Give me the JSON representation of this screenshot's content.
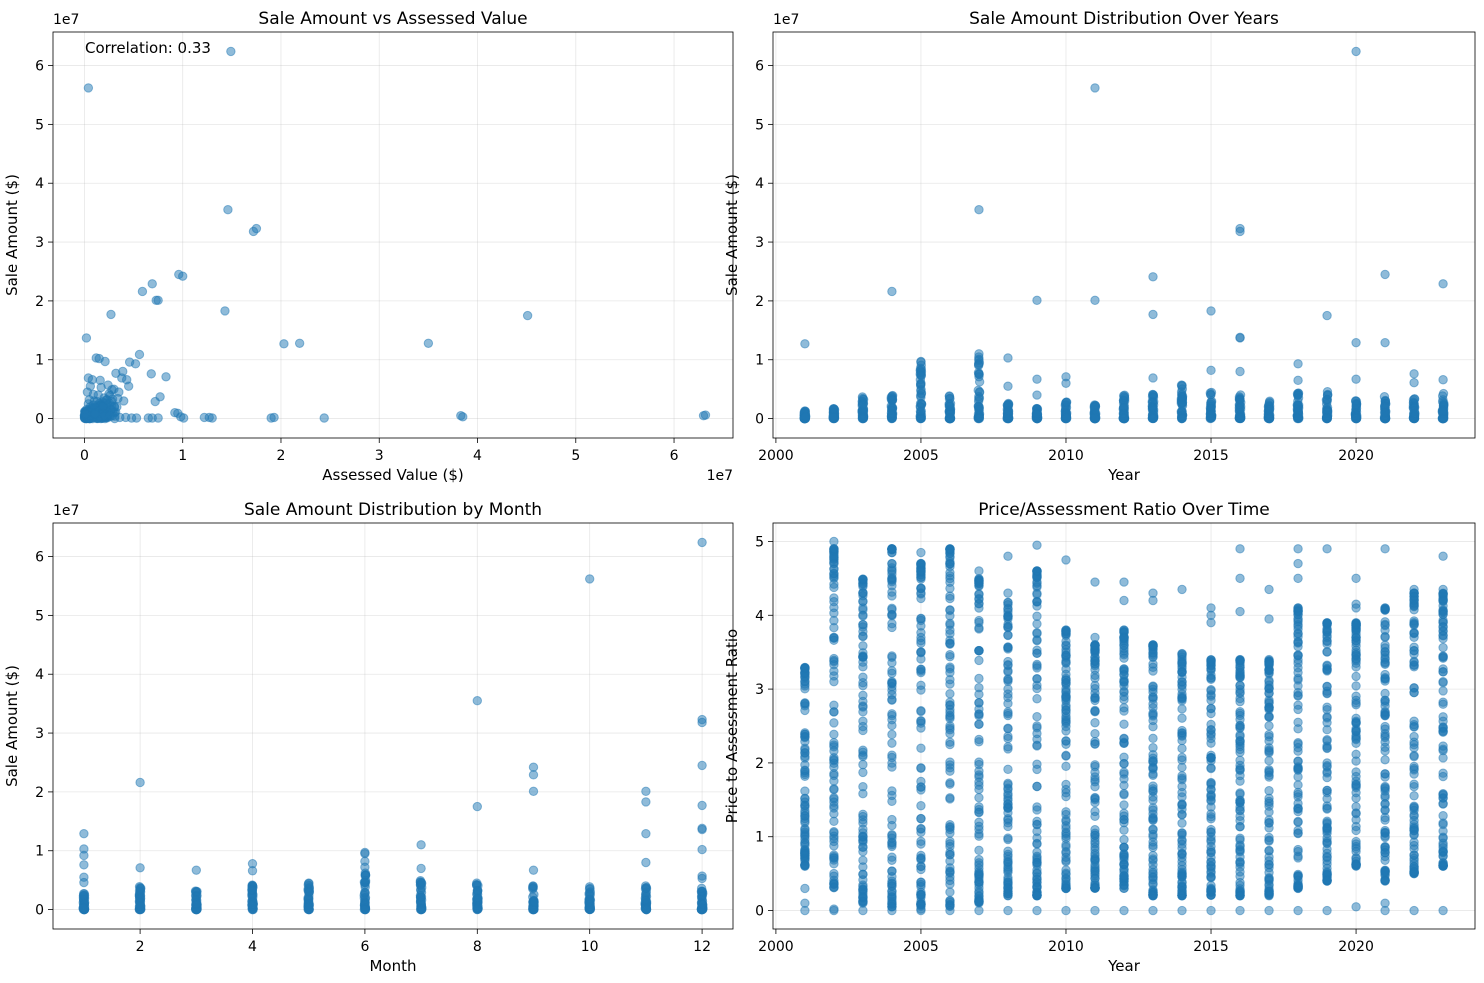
{
  "chart_data": [
    {
      "type": "scatter",
      "title": "Sale Amount vs Assessed Value",
      "xlabel": "Assessed Value ($)",
      "ylabel": "Sale Amount ($)",
      "x_scale_label": "1e7",
      "y_scale_label": "1e7",
      "annotation": "Correlation: 0.33",
      "xlim": [
        -3.2,
        66
      ],
      "ylim": [
        -3.3,
        65.7
      ],
      "xticks": [
        0,
        10,
        20,
        30,
        40,
        50,
        60
      ],
      "xtick_labels": [
        "0",
        "1",
        "2",
        "3",
        "4",
        "5",
        "6"
      ],
      "yticks": [
        0,
        10,
        20,
        30,
        40,
        50,
        60
      ],
      "ytick_labels": [
        "0",
        "1",
        "2",
        "3",
        "4",
        "5",
        "6"
      ],
      "grid": true,
      "units": "millions of dollars (axis shown in units of 1e7)",
      "points": [
        [
          0.2,
          13.7
        ],
        [
          0.4,
          56.2
        ],
        [
          14.9,
          62.4
        ],
        [
          14.6,
          35.5
        ],
        [
          17.2,
          31.8
        ],
        [
          17.5,
          32.3
        ],
        [
          9.6,
          24.5
        ],
        [
          10.0,
          24.2
        ],
        [
          6.9,
          22.9
        ],
        [
          5.9,
          21.6
        ],
        [
          7.3,
          20.1
        ],
        [
          7.5,
          20.1
        ],
        [
          2.7,
          17.7
        ],
        [
          14.3,
          18.3
        ],
        [
          45.1,
          17.5
        ],
        [
          35,
          12.8
        ],
        [
          20.3,
          12.7
        ],
        [
          21.9,
          12.8
        ],
        [
          1.2,
          10.3
        ],
        [
          1.5,
          10.2
        ],
        [
          5.6,
          10.9
        ],
        [
          4.6,
          9.6
        ],
        [
          5.2,
          9.3
        ],
        [
          2.1,
          9.7
        ],
        [
          6.8,
          7.6
        ],
        [
          8.3,
          7.1
        ],
        [
          0.4,
          6.9
        ],
        [
          0.8,
          6.6
        ],
        [
          1.6,
          6.5
        ],
        [
          3.8,
          6.9
        ],
        [
          3.2,
          7.7
        ],
        [
          4.3,
          6.6
        ],
        [
          7.7,
          3.7
        ],
        [
          7.2,
          2.9
        ],
        [
          4.5,
          5.5
        ],
        [
          0.3,
          1
        ],
        [
          0.6,
          2
        ],
        [
          1,
          3
        ],
        [
          1.4,
          4
        ],
        [
          2,
          3.5
        ],
        [
          2.5,
          4.2
        ],
        [
          3,
          5
        ],
        [
          3.5,
          4.5
        ],
        [
          4,
          3
        ],
        [
          1.5,
          1.2
        ],
        [
          2.2,
          2.6
        ],
        [
          0.8,
          0.5
        ],
        [
          1.1,
          1.8
        ],
        [
          1.8,
          0.9
        ],
        [
          2.7,
          1.5
        ],
        [
          3.3,
          2
        ],
        [
          0.5,
          3.2
        ],
        [
          0.2,
          0.3
        ],
        [
          0.4,
          0.6
        ],
        [
          1.3,
          2.9
        ],
        [
          2.4,
          5.7
        ],
        [
          2.8,
          4.9
        ],
        [
          3.9,
          8
        ],
        [
          0.9,
          4.1
        ],
        [
          0.6,
          5.5
        ],
        [
          1.7,
          5.3
        ],
        [
          2.9,
          1.1
        ],
        [
          3.1,
          0.4
        ],
        [
          3.6,
          0.2
        ],
        [
          4.2,
          0.2
        ],
        [
          4.8,
          0.1
        ],
        [
          5.3,
          0.1
        ],
        [
          6.5,
          0.1
        ],
        [
          6.9,
          0.1
        ],
        [
          7.5,
          0.1
        ],
        [
          9.2,
          1
        ],
        [
          9.5,
          0.9
        ],
        [
          9.8,
          0.3
        ],
        [
          10.1,
          0.1
        ],
        [
          12.2,
          0.2
        ],
        [
          12.7,
          0.2
        ],
        [
          13,
          0.1
        ],
        [
          19,
          0.1
        ],
        [
          19.3,
          0.2
        ],
        [
          24.4,
          0.1
        ],
        [
          38.3,
          0.5
        ],
        [
          38.5,
          0.3
        ],
        [
          63,
          0.5
        ],
        [
          63.2,
          0.6
        ],
        [
          0.1,
          0.1
        ],
        [
          0.3,
          0.2
        ],
        [
          0.5,
          0.1
        ],
        [
          0.7,
          0.3
        ],
        [
          1.0,
          0.2
        ],
        [
          1.2,
          0.4
        ],
        [
          1.6,
          0.3
        ],
        [
          2.1,
          0.5
        ],
        [
          2.6,
          0.6
        ],
        [
          0.2,
          1.5
        ],
        [
          0.4,
          2.5
        ],
        [
          0.7,
          1.2
        ],
        [
          1.9,
          2.1
        ],
        [
          2.3,
          3.2
        ],
        [
          2.6,
          3.9
        ],
        [
          3.4,
          3.4
        ],
        [
          1.1,
          0.8
        ],
        [
          0.9,
          2.3
        ],
        [
          0.1,
          0.8
        ],
        [
          0.3,
          4.5
        ]
      ]
    },
    {
      "type": "scatter",
      "title": "Sale Amount Distribution Over Years",
      "xlabel": "Year",
      "ylabel": "Sale Amount ($)",
      "y_scale_label": "1e7",
      "xlim": [
        1999.9,
        2024.1
      ],
      "ylim": [
        -3.3,
        65.7
      ],
      "xticks": [
        2000,
        2005,
        2010,
        2015,
        2020
      ],
      "xtick_labels": [
        "2000",
        "2005",
        "2010",
        "2015",
        "2020"
      ],
      "yticks": [
        0,
        10,
        20,
        30,
        40,
        50,
        60
      ],
      "ytick_labels": [
        "0",
        "1",
        "2",
        "3",
        "4",
        "5",
        "6"
      ],
      "grid": true,
      "units": "millions of dollars (axis shown in units of 1e7)",
      "column_max": {
        "2001": 1.3,
        "2002": 1.8,
        "2003": 4.2,
        "2004": 4,
        "2005": 9.7,
        "2006": 4.9,
        "2007": 11,
        "2008": 2.6,
        "2009": 2,
        "2010": 3,
        "2011": 2.5,
        "2012": 4.6,
        "2013": 4.2,
        "2014": 5.7,
        "2015": 4.5,
        "2016": 4.2,
        "2017": 3.2,
        "2018": 4.6,
        "2019": 4.8,
        "2020": 3.1,
        "2021": 3.8,
        "2022": 3.5,
        "2023": 4.4
      },
      "points": [
        [
          2001,
          12.7
        ],
        [
          2004,
          21.6
        ],
        [
          2005,
          9.7
        ],
        [
          2005,
          9.6
        ],
        [
          2005,
          7.8
        ],
        [
          2005,
          6
        ],
        [
          2007,
          35.5
        ],
        [
          2007,
          11
        ],
        [
          2007,
          10.1
        ],
        [
          2007,
          7.6
        ],
        [
          2007,
          7.1
        ],
        [
          2008,
          10.3
        ],
        [
          2008,
          5.5
        ],
        [
          2009,
          20.1
        ],
        [
          2009,
          6.7
        ],
        [
          2009,
          4
        ],
        [
          2010,
          7.1
        ],
        [
          2010,
          6
        ],
        [
          2011,
          56.2
        ],
        [
          2011,
          20.1
        ],
        [
          2013,
          24.1
        ],
        [
          2013,
          17.7
        ],
        [
          2013,
          6.9
        ],
        [
          2015,
          18.3
        ],
        [
          2015,
          8.2
        ],
        [
          2016,
          32.3
        ],
        [
          2016,
          31.8
        ],
        [
          2016,
          13.7
        ],
        [
          2016,
          13.8
        ],
        [
          2016,
          8
        ],
        [
          2018,
          9.3
        ],
        [
          2018,
          6.5
        ],
        [
          2019,
          17.5
        ],
        [
          2020,
          62.4
        ],
        [
          2020,
          12.9
        ],
        [
          2020,
          6.7
        ],
        [
          2021,
          24.5
        ],
        [
          2021,
          12.9
        ],
        [
          2022,
          7.6
        ],
        [
          2022,
          6.1
        ],
        [
          2023,
          22.9
        ],
        [
          2023,
          6.6
        ]
      ]
    },
    {
      "type": "scatter",
      "title": "Sale Amount Distribution by Month",
      "xlabel": "Month",
      "ylabel": "Sale Amount ($)",
      "y_scale_label": "1e7",
      "xlim": [
        0.45,
        12.55
      ],
      "ylim": [
        -3.3,
        65.7
      ],
      "xticks": [
        2,
        4,
        6,
        8,
        10,
        12
      ],
      "xtick_labels": [
        "2",
        "4",
        "6",
        "8",
        "10",
        "12"
      ],
      "yticks": [
        0,
        10,
        20,
        30,
        40,
        50,
        60
      ],
      "ytick_labels": [
        "0",
        "1",
        "2",
        "3",
        "4",
        "5",
        "6"
      ],
      "grid": true,
      "units": "millions of dollars (axis shown in units of 1e7)",
      "column_max": {
        "1": 3,
        "2": 4,
        "3": 3.3,
        "4": 4.2,
        "5": 4.8,
        "6": 6.5,
        "7": 5,
        "8": 4.5,
        "9": 4.2,
        "10": 4.1,
        "11": 4.2,
        "12": 3.8
      },
      "points": [
        [
          1,
          12.9
        ],
        [
          1,
          10.3
        ],
        [
          1,
          9.2
        ],
        [
          1,
          7.6
        ],
        [
          1,
          5.5
        ],
        [
          1,
          4.6
        ],
        [
          2,
          21.6
        ],
        [
          2,
          7.1
        ],
        [
          3,
          6.7
        ],
        [
          4,
          7.8
        ],
        [
          4,
          6.6
        ],
        [
          6,
          9.7
        ],
        [
          6,
          9.5
        ],
        [
          6,
          8.2
        ],
        [
          6,
          7.2
        ],
        [
          7,
          11
        ],
        [
          7,
          7
        ],
        [
          8,
          35.5
        ],
        [
          8,
          17.5
        ],
        [
          9,
          24.2
        ],
        [
          9,
          22.9
        ],
        [
          9,
          20.1
        ],
        [
          9,
          6.7
        ],
        [
          10,
          56.2
        ],
        [
          11,
          20.1
        ],
        [
          11,
          18.3
        ],
        [
          11,
          12.9
        ],
        [
          11,
          8
        ],
        [
          12,
          62.4
        ],
        [
          12,
          32.3
        ],
        [
          12,
          31.8
        ],
        [
          12,
          24.5
        ],
        [
          12,
          17.7
        ],
        [
          12,
          13.8
        ],
        [
          12,
          13.6
        ],
        [
          12,
          10.2
        ],
        [
          12,
          5.7
        ],
        [
          12,
          5.3
        ]
      ]
    },
    {
      "type": "scatter",
      "title": "Price/Assessment Ratio Over Time",
      "xlabel": "Year",
      "ylabel": "Price to Assessment Ratio",
      "xlim": [
        1999.9,
        2024.1
      ],
      "ylim": [
        -0.25,
        5.25
      ],
      "xticks": [
        2000,
        2005,
        2010,
        2015,
        2020
      ],
      "xtick_labels": [
        "2000",
        "2005",
        "2010",
        "2015",
        "2020"
      ],
      "yticks": [
        0,
        1,
        2,
        3,
        4,
        5
      ],
      "ytick_labels": [
        "0",
        "1",
        "2",
        "3",
        "4",
        "5"
      ],
      "grid": true,
      "column_ranges": {
        "2001": [
          0.6,
          3.3
        ],
        "2002": [
          0.3,
          4.9
        ],
        "2003": [
          0.1,
          4.5
        ],
        "2004": [
          0.05,
          4.9
        ],
        "2005": [
          0.05,
          4.7
        ],
        "2006": [
          0.05,
          4.9
        ],
        "2007": [
          0.1,
          4.5
        ],
        "2008": [
          0.2,
          4.2
        ],
        "2009": [
          0.2,
          4.6
        ],
        "2010": [
          0.3,
          3.8
        ],
        "2011": [
          0.3,
          3.6
        ],
        "2012": [
          0.3,
          3.8
        ],
        "2013": [
          0.2,
          3.6
        ],
        "2014": [
          0.2,
          3.5
        ],
        "2015": [
          0.2,
          3.4
        ],
        "2016": [
          0.2,
          3.4
        ],
        "2017": [
          0.2,
          3.4
        ],
        "2018": [
          0.3,
          4.1
        ],
        "2019": [
          0.4,
          3.9
        ],
        "2020": [
          0.6,
          3.9
        ],
        "2021": [
          0.4,
          4.1
        ],
        "2022": [
          0.5,
          4.3
        ],
        "2023": [
          0.6,
          4.3
        ]
      },
      "points": [
        [
          2001,
          0
        ],
        [
          2001,
          0.1
        ],
        [
          2001,
          0.3
        ],
        [
          2002,
          0
        ],
        [
          2002,
          0.02
        ],
        [
          2002,
          5
        ],
        [
          2002,
          4.9
        ],
        [
          2002,
          4.5
        ],
        [
          2003,
          0
        ],
        [
          2004,
          0
        ],
        [
          2004,
          4.9
        ],
        [
          2004,
          4.4
        ],
        [
          2005,
          0
        ],
        [
          2005,
          0.02
        ],
        [
          2005,
          4.85
        ],
        [
          2005,
          4.6
        ],
        [
          2006,
          0
        ],
        [
          2006,
          4.9
        ],
        [
          2006,
          4.7
        ],
        [
          2007,
          0
        ],
        [
          2007,
          4.6
        ],
        [
          2008,
          0
        ],
        [
          2008,
          4.8
        ],
        [
          2008,
          4.3
        ],
        [
          2008,
          4
        ],
        [
          2009,
          0
        ],
        [
          2009,
          4.95
        ],
        [
          2009,
          4.6
        ],
        [
          2009,
          4.4
        ],
        [
          2010,
          0
        ],
        [
          2010,
          4.75
        ],
        [
          2010,
          3.8
        ],
        [
          2010,
          3.2
        ],
        [
          2011,
          0
        ],
        [
          2011,
          4.45
        ],
        [
          2011,
          3.7
        ],
        [
          2012,
          0
        ],
        [
          2012,
          4.45
        ],
        [
          2012,
          4.2
        ],
        [
          2012,
          3.7
        ],
        [
          2013,
          0
        ],
        [
          2013,
          4.3
        ],
        [
          2013,
          4.2
        ],
        [
          2014,
          0
        ],
        [
          2014,
          4.35
        ],
        [
          2015,
          0
        ],
        [
          2015,
          4.1
        ],
        [
          2015,
          4
        ],
        [
          2015,
          3.9
        ],
        [
          2016,
          0
        ],
        [
          2016,
          0.2
        ],
        [
          2016,
          4.9
        ],
        [
          2016,
          4.5
        ],
        [
          2016,
          4.05
        ],
        [
          2017,
          0
        ],
        [
          2017,
          4.35
        ],
        [
          2017,
          3.95
        ],
        [
          2018,
          0
        ],
        [
          2018,
          4.9
        ],
        [
          2018,
          4.7
        ],
        [
          2018,
          4.5
        ],
        [
          2019,
          0
        ],
        [
          2019,
          4.9
        ],
        [
          2020,
          0.05
        ],
        [
          2020,
          4.5
        ],
        [
          2020,
          4.15
        ],
        [
          2020,
          4.1
        ],
        [
          2021,
          0
        ],
        [
          2021,
          0.1
        ],
        [
          2021,
          4.9
        ],
        [
          2022,
          0
        ],
        [
          2022,
          4.35
        ],
        [
          2022,
          4.2
        ],
        [
          2023,
          0
        ],
        [
          2023,
          4.8
        ],
        [
          2023,
          4.35
        ]
      ]
    }
  ]
}
